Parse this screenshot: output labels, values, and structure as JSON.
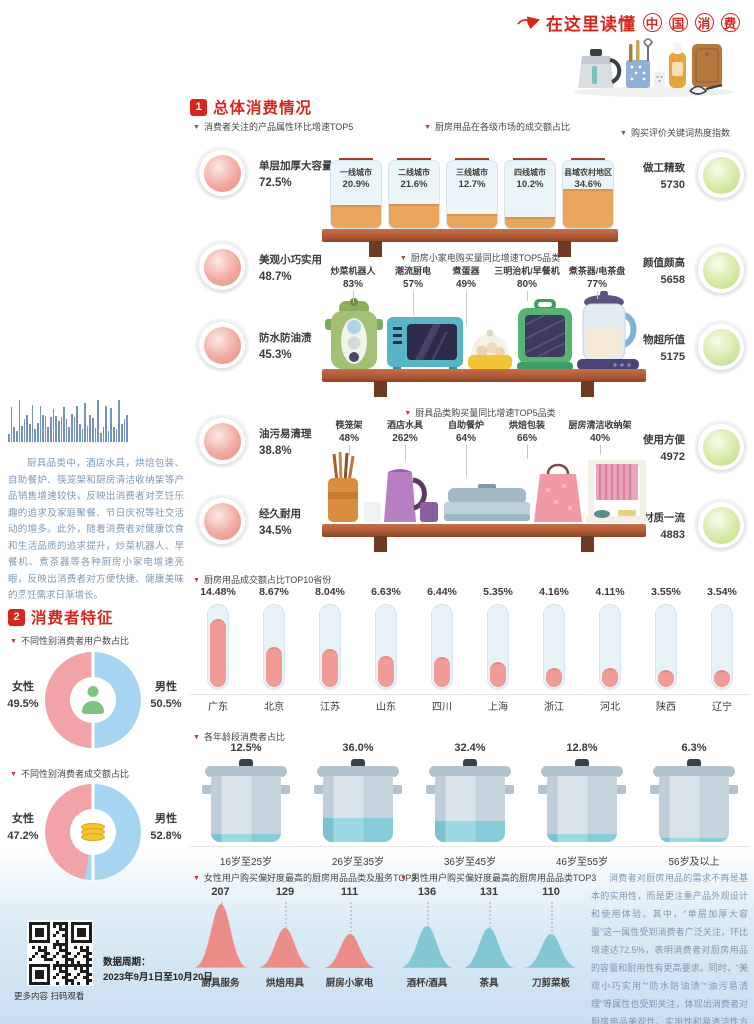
{
  "header": {
    "title_prefix": "在这里读懂",
    "circled_chars": [
      "中",
      "国",
      "消",
      "费"
    ]
  },
  "section1": {
    "num": "1",
    "title": "总体消费情况",
    "attributes": {
      "label": "消费者关注的产品属性环比增速TOP5",
      "items": [
        {
          "name": "单层加厚大容量",
          "value": "72.5%"
        },
        {
          "name": "美观小巧实用",
          "value": "48.7%"
        },
        {
          "name": "防水防油渍",
          "value": "45.3%"
        },
        {
          "name": "油污易清理",
          "value": "38.8%"
        },
        {
          "name": "经久耐用",
          "value": "34.5%"
        }
      ]
    },
    "market_tiers": {
      "label": "厨房用品在各级市场的成交额占比",
      "items": [
        {
          "name": "一线城市",
          "value": "20.9%"
        },
        {
          "name": "二线城市",
          "value": "21.6%"
        },
        {
          "name": "三线城市",
          "value": "12.7%"
        },
        {
          "name": "四线城市",
          "value": "10.2%"
        },
        {
          "name": "县域农村地区",
          "value": "34.6%"
        }
      ]
    },
    "keywords": {
      "label": "购买评价关键词热度指数",
      "items": [
        {
          "name": "做工精致",
          "value": "5730"
        },
        {
          "name": "颜值颇高",
          "value": "5658"
        },
        {
          "name": "物超所值",
          "value": "5175"
        },
        {
          "name": "使用方便",
          "value": "4972"
        },
        {
          "name": "材质一流",
          "value": "4883"
        }
      ]
    },
    "appliances": {
      "label": "厨房小家电购买量同比增速TOP5品类",
      "items": [
        {
          "name": "炒菜机器人",
          "value": "83%"
        },
        {
          "name": "潮流厨电",
          "value": "57%"
        },
        {
          "name": "煮蛋器",
          "value": "49%"
        },
        {
          "name": "三明治机/早餐机",
          "value": "80%"
        },
        {
          "name": "煮茶器/电茶盘",
          "value": "77%"
        }
      ]
    },
    "kitchenware": {
      "label": "厨具品类购买量同比增速TOP5品类",
      "items": [
        {
          "name": "筷笼架",
          "value": "48%"
        },
        {
          "name": "酒店水具",
          "value": "262%"
        },
        {
          "name": "自助餐炉",
          "value": "64%"
        },
        {
          "name": "烘焙包装",
          "value": "66%"
        },
        {
          "name": "厨房清洁收纳架",
          "value": "40%"
        }
      ]
    },
    "provinces": {
      "label": "厨房用品成交额占比TOP10省份",
      "items": [
        {
          "name": "广东",
          "value": "14.48%"
        },
        {
          "name": "北京",
          "value": "8.67%"
        },
        {
          "name": "江苏",
          "value": "8.04%"
        },
        {
          "name": "山东",
          "value": "6.63%"
        },
        {
          "name": "四川",
          "value": "6.44%"
        },
        {
          "name": "上海",
          "value": "5.35%"
        },
        {
          "name": "浙江",
          "value": "4.16%"
        },
        {
          "name": "河北",
          "value": "4.11%"
        },
        {
          "name": "陕西",
          "value": "3.55%"
        },
        {
          "name": "辽宁",
          "value": "3.54%"
        }
      ]
    },
    "ages": {
      "label": "各年龄段消费者占比",
      "items": [
        {
          "name": "16岁至25岁",
          "value": "12.5%"
        },
        {
          "name": "26岁至35岁",
          "value": "36.0%"
        },
        {
          "name": "36岁至45岁",
          "value": "32.4%"
        },
        {
          "name": "46岁至55岁",
          "value": "12.8%"
        },
        {
          "name": "56岁及以上",
          "value": "6.3%"
        }
      ]
    },
    "side_note": "厨具品类中，酒店水具，烘焙包装、自助餐炉、筷笼架和厨房清洁收纳架等产品销售增速较快，反映出消费者对烹饪乐趣的追求及家庭聚餐、节日庆祝等社交活动的增多。此外，随着消费者对健康饮食和生活品质的追求提升，炒菜机器人、早餐机、煮茶器等各种厨房小家电增速亮眼，反映出消费者对方便快捷、健康美味的烹饪需求日渐增长。"
  },
  "section2": {
    "num": "2",
    "title": "消费者特征",
    "gender_users": {
      "label": "不同性别消费者用户数占比",
      "female_name": "女性",
      "female_value": "49.5%",
      "male_name": "男性",
      "male_value": "50.5%"
    },
    "gender_gmv": {
      "label": "不同性别消费者成交额占比",
      "female_name": "女性",
      "female_value": "47.2%",
      "male_name": "男性",
      "male_value": "52.8%"
    }
  },
  "bottom": {
    "female_top3": {
      "label": "女性用户购买偏好度最高的厨房用品品类及服务TOP3",
      "items": [
        {
          "name": "厨具服务",
          "value": "207"
        },
        {
          "name": "烘焙用具",
          "value": "129"
        },
        {
          "name": "厨房小家电",
          "value": "111"
        }
      ]
    },
    "male_top3": {
      "label": "男性用户购买偏好度最高的厨房用品品类TOP3",
      "items": [
        {
          "name": "酒杯/酒具",
          "value": "136"
        },
        {
          "name": "茶具",
          "value": "131"
        },
        {
          "name": "刀剪菜板",
          "value": "110"
        }
      ]
    },
    "conclusion": "消费者对厨房用品的需求不再是基本的实用性，而是更注重产品外观设计和使用体验。其中，“单层加厚大容量”这一属性受到消费者广泛关注，环比增速达72.5%，表明消费者对厨房用品的容量和耐用性有更高要求。同时，“美观小巧实用”“防水防油渍”“油污易清理”等属性也受到关注，体现出消费者对厨房用品美观性、实用性和易清洁性方面的需求也在不断提升。",
    "qr_caption": "更多内容 扫码观看",
    "period_label": "数据周期：",
    "period_value": "2023年9月1日至10月20日"
  },
  "colors": {
    "accent_red": "#d7261e",
    "sphere_pink": "#f2aba1",
    "sphere_green": "#cde79f",
    "donut_female_pink": "#f2a3a8",
    "donut_male_blue": "#a7d5f1",
    "tube_fill_pink": "#f09b95",
    "pot_fill_teal": "#87ccd8",
    "shelf_brown": "#ad5834"
  },
  "chart_data": [
    {
      "id": "attribute_growth",
      "type": "bar",
      "title": "消费者关注的产品属性环比增速TOP5",
      "categories": [
        "单层加厚大容量",
        "美观小巧实用",
        "防水防油渍",
        "油污易清理",
        "经久耐用"
      ],
      "values": [
        72.5,
        48.7,
        45.3,
        38.8,
        34.5
      ],
      "unit": "%"
    },
    {
      "id": "city_tier_share",
      "type": "bar",
      "title": "厨房用品在各级市场的成交额占比",
      "categories": [
        "一线城市",
        "二线城市",
        "三线城市",
        "四线城市",
        "县域农村地区"
      ],
      "values": [
        20.9,
        21.6,
        12.7,
        10.2,
        34.6
      ],
      "unit": "%"
    },
    {
      "id": "keyword_heat_index",
      "type": "bar",
      "title": "购买评价关键词热度指数",
      "categories": [
        "做工精致",
        "颜值颇高",
        "物超所值",
        "使用方便",
        "材质一流"
      ],
      "values": [
        5730,
        5658,
        5175,
        4972,
        4883
      ]
    },
    {
      "id": "appliance_growth",
      "type": "bar",
      "title": "厨房小家电购买量同比增速TOP5品类",
      "categories": [
        "炒菜机器人",
        "潮流厨电",
        "煮蛋器",
        "三明治机/早餐机",
        "煮茶器/电茶盘"
      ],
      "values": [
        83,
        57,
        49,
        80,
        77
      ],
      "unit": "%"
    },
    {
      "id": "kitchenware_growth",
      "type": "bar",
      "title": "厨具品类购买量同比增速TOP5品类",
      "categories": [
        "筷笼架",
        "酒店水具",
        "自助餐炉",
        "烘焙包装",
        "厨房清洁收纳架"
      ],
      "values": [
        48,
        262,
        64,
        66,
        40
      ],
      "unit": "%"
    },
    {
      "id": "province_share",
      "type": "bar",
      "title": "厨房用品成交额占比TOP10省份",
      "categories": [
        "广东",
        "北京",
        "江苏",
        "山东",
        "四川",
        "上海",
        "浙江",
        "河北",
        "陕西",
        "辽宁"
      ],
      "values": [
        14.48,
        8.67,
        8.04,
        6.63,
        6.44,
        5.35,
        4.16,
        4.11,
        3.55,
        3.54
      ],
      "unit": "%"
    },
    {
      "id": "age_share",
      "type": "bar",
      "title": "各年龄段消费者占比",
      "categories": [
        "16岁至25岁",
        "26岁至35岁",
        "36岁至45岁",
        "46岁至55岁",
        "56岁及以上"
      ],
      "values": [
        12.5,
        36.0,
        32.4,
        12.8,
        6.3
      ],
      "unit": "%"
    },
    {
      "id": "gender_user_share",
      "type": "pie",
      "title": "不同性别消费者用户数占比",
      "categories": [
        "女性",
        "男性"
      ],
      "values": [
        49.5,
        50.5
      ],
      "unit": "%"
    },
    {
      "id": "gender_gmv_share",
      "type": "pie",
      "title": "不同性别消费者成交额占比",
      "categories": [
        "女性",
        "男性"
      ],
      "values": [
        47.2,
        52.8
      ],
      "unit": "%"
    },
    {
      "id": "female_preference_top3",
      "type": "bar",
      "title": "女性用户购买偏好度最高的厨房用品品类及服务TOP3",
      "categories": [
        "厨具服务",
        "烘焙用具",
        "厨房小家电"
      ],
      "values": [
        207,
        129,
        111
      ]
    },
    {
      "id": "male_preference_top3",
      "type": "bar",
      "title": "男性用户购买偏好度最高的厨房用品品类TOP3",
      "categories": [
        "酒杯/酒具",
        "茶具",
        "刀剪菜板"
      ],
      "values": [
        136,
        131,
        110
      ]
    }
  ]
}
